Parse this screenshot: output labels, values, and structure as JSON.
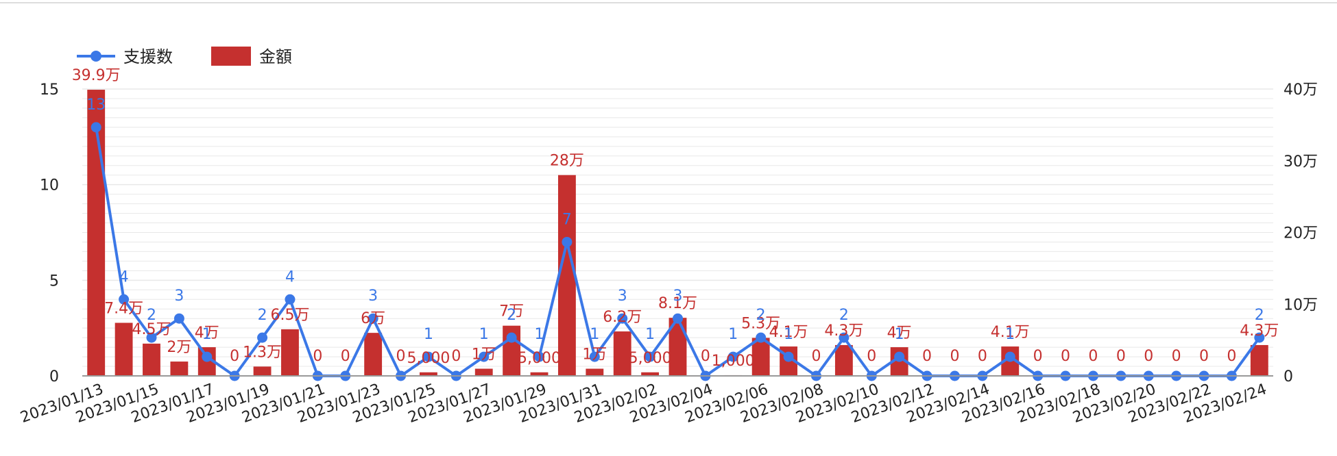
{
  "colors": {
    "bar": "#c5302f",
    "line": "#3b78e7",
    "bar_label": "#c5302f",
    "line_label": "#3b78e7",
    "grid": "#e8e8e8",
    "axis": "#999999"
  },
  "chart_data": {
    "type": "bar",
    "title": "",
    "legend": {
      "position": "top-left",
      "items": [
        {
          "name": "支援数",
          "kind": "line"
        },
        {
          "name": "金額",
          "kind": "bar"
        }
      ]
    },
    "x": [
      "2023/01/13",
      "2023/01/14",
      "2023/01/15",
      "2023/01/16",
      "2023/01/17",
      "2023/01/18",
      "2023/01/19",
      "2023/01/20",
      "2023/01/21",
      "2023/01/22",
      "2023/01/23",
      "2023/01/24",
      "2023/01/25",
      "2023/01/26",
      "2023/01/27",
      "2023/01/28",
      "2023/01/29",
      "2023/01/30",
      "2023/01/31",
      "2023/02/01",
      "2023/02/02",
      "2023/02/03",
      "2023/02/04",
      "2023/02/05",
      "2023/02/06",
      "2023/02/07",
      "2023/02/08",
      "2023/02/09",
      "2023/02/10",
      "2023/02/11",
      "2023/02/12",
      "2023/02/13",
      "2023/02/14",
      "2023/02/15",
      "2023/02/16",
      "2023/02/17",
      "2023/02/18",
      "2023/02/19",
      "2023/02/20",
      "2023/02/21",
      "2023/02/22",
      "2023/02/23",
      "2023/02/24"
    ],
    "x_tick_labels": [
      "2023/01/13",
      "2023/01/15",
      "2023/01/17",
      "2023/01/19",
      "2023/01/21",
      "2023/01/23",
      "2023/01/25",
      "2023/01/27",
      "2023/01/29",
      "2023/01/31",
      "2023/02/02",
      "2023/02/04",
      "2023/02/06",
      "2023/02/08",
      "2023/02/10",
      "2023/02/12",
      "2023/02/14",
      "2023/02/16",
      "2023/02/18",
      "2023/02/20",
      "2023/02/22",
      "2023/02/24"
    ],
    "y_left": {
      "min": 0,
      "max": 15,
      "ticks": [
        "0",
        "5",
        "10",
        "15"
      ]
    },
    "y_right": {
      "min": 0,
      "max": 400000,
      "ticks": [
        "0",
        "10万",
        "20万",
        "30万",
        "40万"
      ]
    },
    "grid": true,
    "series": [
      {
        "name": "金額",
        "type": "bar",
        "axis": "right",
        "values": [
          399000,
          74000,
          45000,
          20000,
          40000,
          0,
          13000,
          65000,
          0,
          0,
          60000,
          0,
          5000,
          0,
          10000,
          70000,
          5000,
          280000,
          10000,
          62000,
          5000,
          81000,
          0,
          1000,
          53000,
          41000,
          0,
          43000,
          0,
          40000,
          0,
          0,
          0,
          41000,
          0,
          0,
          0,
          0,
          0,
          0,
          0,
          0,
          43000
        ],
        "labels": [
          "39.9万",
          "7.4万",
          "4.5万",
          "2万",
          "4万",
          "0",
          "1.3万",
          "6.5万",
          "0",
          "0",
          "6万",
          "0",
          "5,000",
          "0",
          "1万",
          "7万",
          "5,000",
          "28万",
          "1万",
          "6.2万",
          "5,000",
          "8.1万",
          "0",
          "1,000",
          "5.3万",
          "4.1万",
          "0",
          "4.3万",
          "0",
          "4万",
          "0",
          "0",
          "0",
          "4.1万",
          "0",
          "0",
          "0",
          "0",
          "0",
          "0",
          "0",
          "0",
          "4.3万"
        ]
      },
      {
        "name": "支援数",
        "type": "line",
        "axis": "left",
        "values": [
          13,
          4,
          2,
          3,
          1,
          0,
          2,
          4,
          0,
          0,
          3,
          0,
          1,
          0,
          1,
          2,
          1,
          7,
          1,
          3,
          1,
          3,
          0,
          1,
          2,
          1,
          0,
          2,
          0,
          1,
          0,
          0,
          0,
          1,
          0,
          0,
          0,
          0,
          0,
          0,
          0,
          0,
          2
        ],
        "labels": [
          "13",
          "4",
          "2",
          "3",
          "1",
          "0",
          "2",
          "4",
          "0",
          "0",
          "3",
          "0",
          "1",
          "0",
          "1",
          "2",
          "1",
          "7",
          "1",
          "3",
          "1",
          "3",
          "0",
          "1",
          "2",
          "1",
          "0",
          "2",
          "0",
          "1",
          "0",
          "0",
          "0",
          "1",
          "0",
          "0",
          "0",
          "0",
          "0",
          "0",
          "0",
          "0",
          "2"
        ]
      }
    ]
  }
}
